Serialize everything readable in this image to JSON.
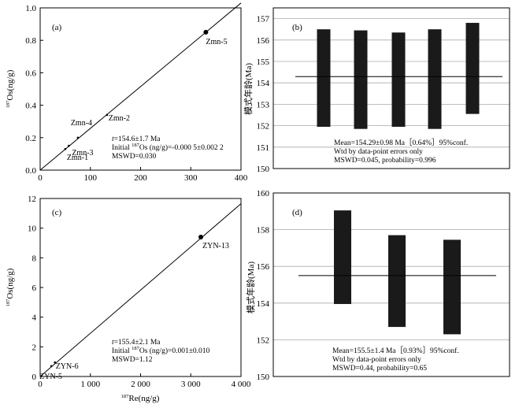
{
  "chart_data": [
    {
      "type": "scatter",
      "panel": "(a)",
      "xlim": [
        0,
        400
      ],
      "ylim": [
        0,
        1.0
      ],
      "xticks": [
        "0",
        "100",
        "200",
        "300",
        "400"
      ],
      "yticks": [
        "0.0",
        "0.2",
        "0.4",
        "0.6",
        "0.8",
        "1.0"
      ],
      "ylabel": "187Os(ng/g)",
      "xlabel": "",
      "points": [
        {
          "label": "Zmn-1",
          "x": 50,
          "y": 0.13
        },
        {
          "label": "Zmn-3",
          "x": 57,
          "y": 0.15
        },
        {
          "label": "Zmn-4",
          "x": 75,
          "y": 0.2
        },
        {
          "label": "Zmn-2",
          "x": 133,
          "y": 0.34
        },
        {
          "label": "Zmn-5",
          "x": 330,
          "y": 0.85
        }
      ],
      "line": {
        "x": [
          0,
          400
        ],
        "y": [
          0.0,
          1.03
        ]
      },
      "annotation": [
        "t=154.6±1.7 Ma",
        "Initial 187Os (ng/g)=-0.000 5±0.002 2",
        "MSWD=0.030"
      ]
    },
    {
      "type": "bar",
      "panel": "(b)",
      "ylabel": "模式年龄(Ma)",
      "ylim": [
        150,
        157.5
      ],
      "yticks": [
        "150",
        "151",
        "152",
        "153",
        "154",
        "155",
        "156",
        "157"
      ],
      "bars": [
        {
          "low": 151.95,
          "high": 156.5
        },
        {
          "low": 151.85,
          "high": 156.45
        },
        {
          "low": 151.95,
          "high": 156.35
        },
        {
          "low": 151.85,
          "high": 156.5
        },
        {
          "low": 152.55,
          "high": 156.8
        }
      ],
      "mean": 154.29,
      "annotation": [
        "Mean=154.29±0.98 Ma［0.64%］95%conf.",
        "Wtd by data-point errors only",
        "MSWD=0.045, probability=0.996"
      ]
    },
    {
      "type": "scatter",
      "panel": "(c)",
      "xlim": [
        0,
        4500
      ],
      "ylim": [
        0,
        12
      ],
      "xticks": [
        "0",
        "1 000",
        "2 000",
        "3 000",
        "4 000"
      ],
      "yticks": [
        "0",
        "2",
        "4",
        "6",
        "8",
        "10",
        "12"
      ],
      "ylabel": "187Os(ng/g)",
      "xlabel": "187Re(ng/g)",
      "points": [
        {
          "label": "ZYN-5",
          "x": 250,
          "y": 0.7
        },
        {
          "label": "ZYN-6",
          "x": 330,
          "y": 0.95
        },
        {
          "label": "ZYN-13",
          "x": 3600,
          "y": 9.4
        }
      ],
      "line": {
        "x": [
          0,
          4500
        ],
        "y": [
          0.0,
          11.65
        ]
      },
      "annotation": [
        "t=155.4±2.1 Ma",
        "Initial 187Os (ng/g)=0.001±0.010",
        "MSWD=1.12"
      ]
    },
    {
      "type": "bar",
      "panel": "(d)",
      "ylabel": "模式年龄(Ma)",
      "ylim": [
        150,
        160
      ],
      "yticks": [
        "150",
        "152",
        "154",
        "156",
        "158",
        "160"
      ],
      "bars": [
        {
          "low": 153.95,
          "high": 159.05
        },
        {
          "low": 152.7,
          "high": 157.7
        },
        {
          "low": 152.3,
          "high": 157.45
        }
      ],
      "mean": 155.5,
      "annotation": [
        "Mean=155.5±1.4 Ma［0.93%］95%conf.",
        "Wtd by data-point errors only",
        "MSWD=0.44, probability=0.65"
      ]
    }
  ]
}
